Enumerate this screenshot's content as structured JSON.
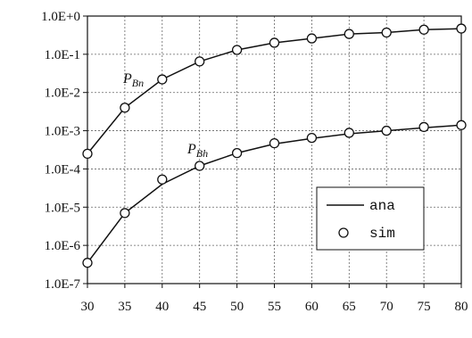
{
  "chart_data": {
    "type": "line",
    "x_ticks": [
      "30",
      "35",
      "40",
      "45",
      "50",
      "55",
      "60",
      "65",
      "70",
      "75",
      "80"
    ],
    "y_ticks": [
      "1.0E+0",
      "1.0E-1",
      "1.0E-2",
      "1.0E-3",
      "1.0E-4",
      "1.0E-5",
      "1.0E-6",
      "1.0E-7"
    ],
    "x_range": [
      30,
      80
    ],
    "y_range": [
      1e-07,
      1
    ],
    "y_scale": "log",
    "grid": true,
    "legend": {
      "placement": "lower-right",
      "entries": [
        {
          "label": "ana",
          "marker": "line"
        },
        {
          "label": "sim",
          "marker": "circle"
        }
      ]
    },
    "curve_labels": [
      {
        "main": "P",
        "sub": "Bn"
      },
      {
        "main": "P",
        "sub": "Bh"
      }
    ],
    "x": [
      30,
      35,
      40,
      45,
      50,
      55,
      60,
      65,
      70,
      75,
      80
    ],
    "series": [
      {
        "label_index": 0,
        "ana": [
          0.00025,
          0.004,
          0.022,
          0.065,
          0.13,
          0.2,
          0.26,
          0.34,
          0.37,
          0.44,
          0.47
        ],
        "sim": [
          0.00025,
          0.004,
          0.022,
          0.065,
          0.13,
          0.2,
          0.26,
          0.34,
          0.37,
          0.44,
          0.47
        ]
      },
      {
        "label_index": 1,
        "ana": [
          3.5e-07,
          7e-06,
          4e-05,
          0.00012,
          0.00026,
          0.00045,
          0.00063,
          0.00083,
          0.001,
          0.0012,
          0.0014
        ],
        "sim": [
          3.5e-07,
          7e-06,
          5.3e-05,
          0.00012,
          0.00026,
          0.00047,
          0.00065,
          0.00088,
          0.001,
          0.00125,
          0.0014
        ]
      }
    ]
  }
}
